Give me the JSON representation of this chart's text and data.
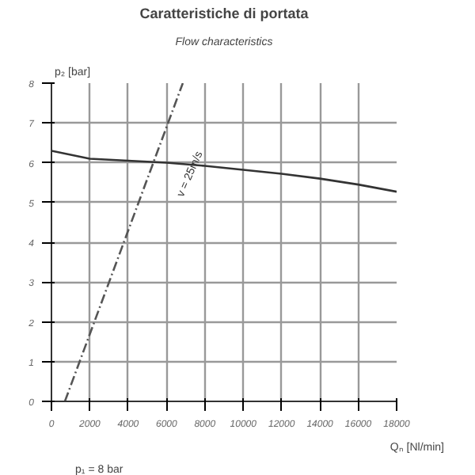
{
  "chart_data": {
    "type": "line",
    "title": "Caratteristiche di portata",
    "subtitle": "Flow characteristics",
    "xlabel": "Qₙ [Nl/min]",
    "ylabel": "p₂ [bar]",
    "x": [
      0,
      2000,
      4000,
      6000,
      8000,
      10000,
      12000,
      14000,
      16000,
      18000
    ],
    "series": [
      {
        "color": "#333333",
        "values": [
          6.3,
          6.1,
          6.05,
          6.0,
          5.92,
          5.82,
          5.72,
          5.6,
          5.45,
          5.27
        ]
      },
      {
        "name": "v = 25m/s",
        "color": "#555555",
        "x": [
          700,
          6850
        ],
        "values": [
          0,
          8
        ],
        "line_style": "dashed"
      }
    ],
    "xlim": [
      0,
      18000
    ],
    "ylim": [
      0,
      8
    ],
    "xticks": [
      0,
      2000,
      4000,
      6000,
      8000,
      10000,
      12000,
      14000,
      16000,
      18000
    ],
    "yticks": [
      0,
      1,
      2,
      3,
      4,
      5,
      6,
      7,
      8
    ],
    "grid": true,
    "marker": "none",
    "annotations": [
      "p₁ = 8 bar"
    ]
  }
}
